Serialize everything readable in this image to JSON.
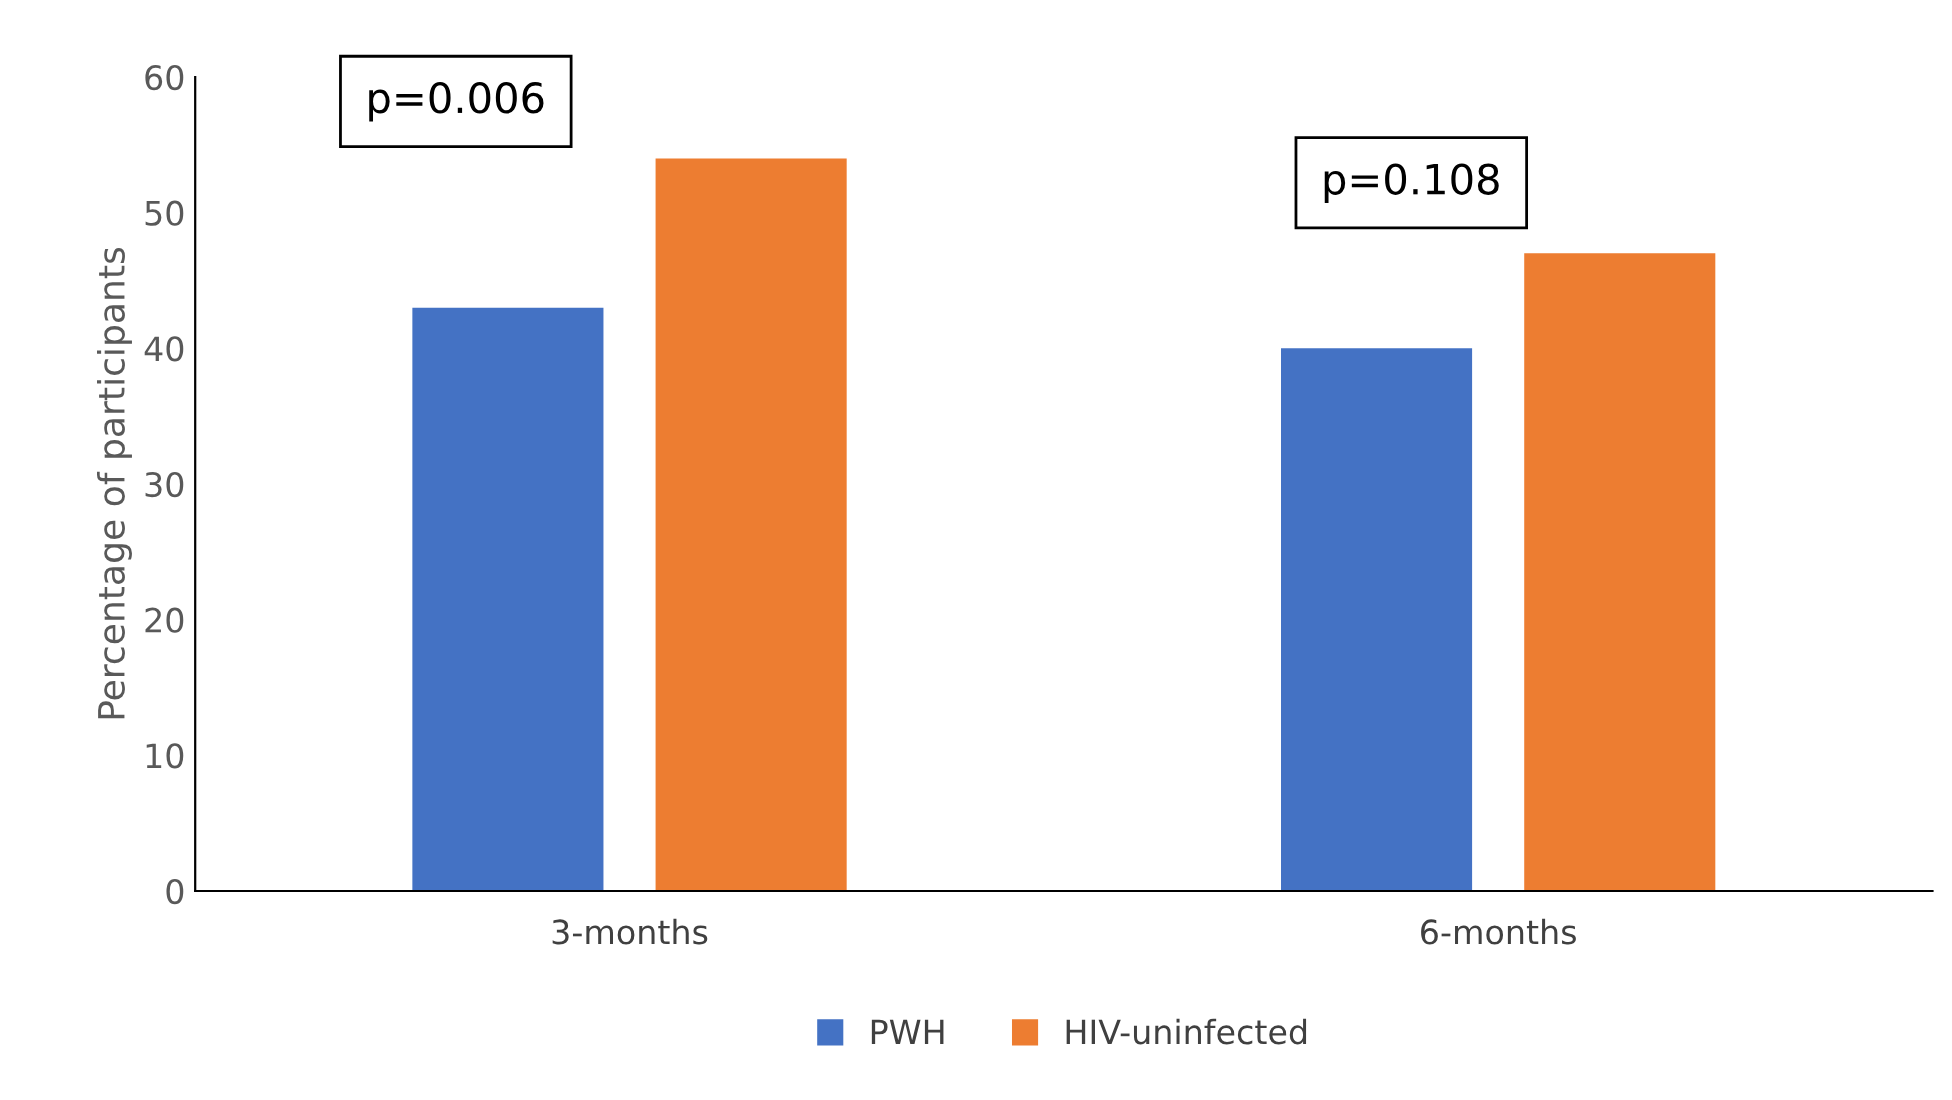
{
  "chart_data": {
    "type": "bar",
    "ylabel": "Percentage of participants",
    "categories": [
      "3-months",
      "6-months"
    ],
    "series": [
      {
        "name": "PWH",
        "color": "#4472c4",
        "values": [
          43,
          40
        ]
      },
      {
        "name": "HIV-uninfected",
        "color": "#ed7d31",
        "values": [
          54,
          47
        ]
      }
    ],
    "ylim": [
      0,
      60
    ],
    "yticks": [
      0,
      10,
      20,
      30,
      40,
      50,
      60
    ],
    "grid": false,
    "legend": "bottom",
    "annotations": [
      "p=0.006",
      "p=0.108"
    ]
  }
}
